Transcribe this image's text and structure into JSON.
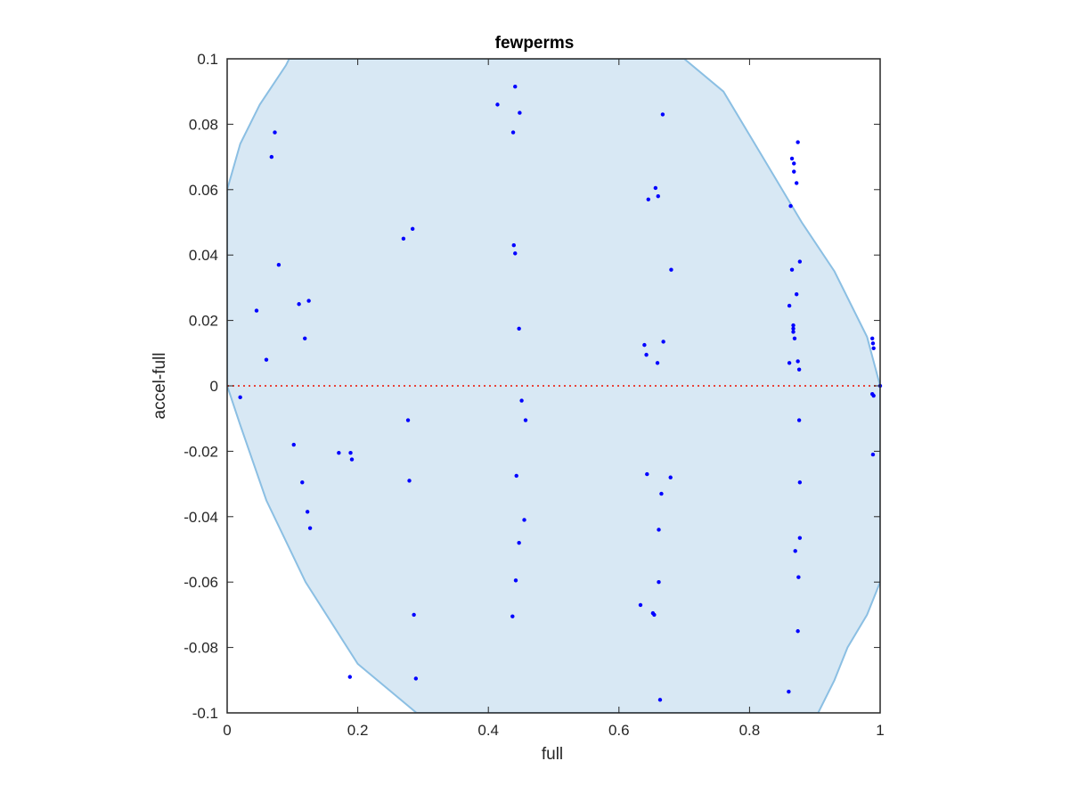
{
  "chart_data": {
    "type": "scatter",
    "title": "fewperms",
    "xlabel": "full",
    "ylabel": "accel-full",
    "xlim": [
      0,
      1
    ],
    "ylim": [
      -0.1,
      0.1
    ],
    "x_ticks": [
      0,
      0.2,
      0.4,
      0.6,
      0.8,
      1
    ],
    "x_tick_labels": [
      "0",
      "0.2",
      "0.4",
      "0.6",
      "0.8",
      "1"
    ],
    "y_ticks": [
      -0.1,
      -0.08,
      -0.06,
      -0.04,
      -0.02,
      0,
      0.02,
      0.04,
      0.06,
      0.08,
      0.1
    ],
    "y_tick_labels": [
      "-0.1",
      "-0.08",
      "-0.06",
      "-0.04",
      "-0.02",
      "0",
      "0.02",
      "0.04",
      "0.06",
      "0.08",
      "0.1"
    ],
    "grid": false,
    "legend": "none",
    "colors": {
      "points": "#0000ff",
      "region_fill": "#d8e8f4",
      "region_edge": "#8bbfe3",
      "reference_line": "#e8443a",
      "axes": "#262626"
    },
    "reference_line": {
      "y": 0,
      "style": "dotted"
    },
    "region": {
      "description": "shaded ellipse-shaped band",
      "boundary": [
        [
          0.0,
          0.06
        ],
        [
          0.02,
          0.074
        ],
        [
          0.05,
          0.086
        ],
        [
          0.09,
          0.098
        ],
        [
          0.095,
          0.1
        ],
        [
          0.7,
          0.1
        ],
        [
          0.76,
          0.09
        ],
        [
          0.82,
          0.07
        ],
        [
          0.88,
          0.05
        ],
        [
          0.93,
          0.035
        ],
        [
          0.98,
          0.015
        ],
        [
          1.0,
          0.0
        ],
        [
          1.0,
          -0.06
        ],
        [
          0.98,
          -0.07
        ],
        [
          0.95,
          -0.08
        ],
        [
          0.93,
          -0.09
        ],
        [
          0.905,
          -0.1
        ],
        [
          0.29,
          -0.1
        ],
        [
          0.2,
          -0.085
        ],
        [
          0.12,
          -0.06
        ],
        [
          0.06,
          -0.035
        ],
        [
          0.02,
          -0.012
        ],
        [
          0.0,
          0.0
        ]
      ]
    },
    "series": [
      {
        "points": [
          [
            0.068,
            0.07
          ],
          [
            0.073,
            0.0775
          ],
          [
            0.079,
            0.037
          ],
          [
            0.045,
            0.023
          ],
          [
            0.06,
            0.008
          ],
          [
            0.11,
            0.025
          ],
          [
            0.125,
            0.026
          ],
          [
            0.119,
            0.0145
          ],
          [
            0.02,
            -0.0035
          ],
          [
            0.102,
            -0.018
          ],
          [
            0.115,
            -0.0295
          ],
          [
            0.123,
            -0.0385
          ],
          [
            0.127,
            -0.0435
          ],
          [
            0.171,
            -0.0205
          ],
          [
            0.189,
            -0.0205
          ],
          [
            0.191,
            -0.0225
          ],
          [
            0.188,
            -0.089
          ],
          [
            0.27,
            0.045
          ],
          [
            0.284,
            0.048
          ],
          [
            0.277,
            -0.0105
          ],
          [
            0.279,
            -0.029
          ],
          [
            0.286,
            -0.07
          ],
          [
            0.289,
            -0.0895
          ],
          [
            0.414,
            0.086
          ],
          [
            0.438,
            0.0775
          ],
          [
            0.441,
            0.0915
          ],
          [
            0.448,
            0.0835
          ],
          [
            0.439,
            0.043
          ],
          [
            0.441,
            0.0405
          ],
          [
            0.447,
            0.0175
          ],
          [
            0.451,
            -0.0045
          ],
          [
            0.457,
            -0.0105
          ],
          [
            0.443,
            -0.0275
          ],
          [
            0.455,
            -0.041
          ],
          [
            0.447,
            -0.048
          ],
          [
            0.442,
            -0.0595
          ],
          [
            0.437,
            -0.0705
          ],
          [
            0.667,
            0.083
          ],
          [
            0.656,
            0.0605
          ],
          [
            0.66,
            0.058
          ],
          [
            0.645,
            0.057
          ],
          [
            0.68,
            0.0355
          ],
          [
            0.639,
            0.0125
          ],
          [
            0.642,
            0.0095
          ],
          [
            0.668,
            0.0135
          ],
          [
            0.659,
            0.007
          ],
          [
            0.643,
            -0.027
          ],
          [
            0.679,
            -0.028
          ],
          [
            0.665,
            -0.033
          ],
          [
            0.661,
            -0.044
          ],
          [
            0.661,
            -0.06
          ],
          [
            0.633,
            -0.067
          ],
          [
            0.652,
            -0.0695
          ],
          [
            0.654,
            -0.07
          ],
          [
            0.663,
            -0.096
          ],
          [
            0.874,
            0.0745
          ],
          [
            0.865,
            0.0695
          ],
          [
            0.868,
            0.068
          ],
          [
            0.868,
            0.0655
          ],
          [
            0.872,
            0.062
          ],
          [
            0.863,
            0.055
          ],
          [
            0.877,
            0.038
          ],
          [
            0.865,
            0.0355
          ],
          [
            0.872,
            0.028
          ],
          [
            0.861,
            0.0245
          ],
          [
            0.867,
            0.0185
          ],
          [
            0.867,
            0.0175
          ],
          [
            0.867,
            0.0165
          ],
          [
            0.869,
            0.0145
          ],
          [
            0.861,
            0.007
          ],
          [
            0.874,
            0.0075
          ],
          [
            0.876,
            0.005
          ],
          [
            0.876,
            -0.0105
          ],
          [
            0.877,
            -0.0295
          ],
          [
            0.877,
            -0.0465
          ],
          [
            0.87,
            -0.0505
          ],
          [
            0.875,
            -0.0585
          ],
          [
            0.874,
            -0.075
          ],
          [
            0.86,
            -0.0935
          ],
          [
            0.988,
            0.0145
          ],
          [
            0.989,
            0.013
          ],
          [
            0.99,
            0.0115
          ],
          [
            0.988,
            -0.0025
          ],
          [
            0.99,
            -0.003
          ],
          [
            0.989,
            -0.021
          ],
          [
            1.0,
            0.0
          ]
        ]
      }
    ]
  }
}
